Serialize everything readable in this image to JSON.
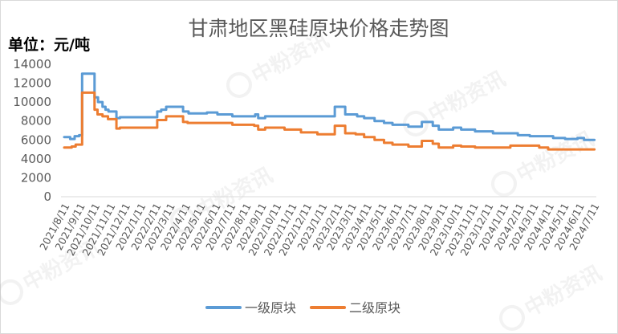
{
  "watermark": "中粉资讯",
  "colors": {
    "background": "#FFFFFF",
    "border": "#D9D9D9",
    "axis": "#D9D9D9",
    "text": "#595959"
  },
  "chart_data": {
    "type": "line",
    "title": "甘肃地区黑硅原块价格走势图",
    "ylabel": "单位：元/吨",
    "ylim": [
      0,
      14000
    ],
    "yticks": [
      0,
      2000,
      4000,
      6000,
      8000,
      10000,
      12000,
      14000
    ],
    "grid": false,
    "legend": "bottom",
    "x_ticks": [
      "2021/8/11",
      "2021/9/11",
      "2021/10/11",
      "2021/11/11",
      "2021/12/11",
      "2022/1/11",
      "2022/2/11",
      "2022/3/11",
      "2022/4/11",
      "2022/5/11",
      "2022/6/11",
      "2022/7/11",
      "2022/8/11",
      "2022/9/11",
      "2022/10/11",
      "2022/11/11",
      "2022/12/11",
      "2023/1/11",
      "2023/2/11",
      "2023/3/11",
      "2023/4/11",
      "2023/5/11",
      "2023/6/11",
      "2023/7/11",
      "2023/8/11",
      "2023/9/11",
      "2023/10/11",
      "2023/11/11",
      "2023/12/11",
      "2024/1/11",
      "2024/2/11",
      "2024/3/11",
      "2024/4/11",
      "2024/5/11",
      "2024/6/11",
      "2024/7/11"
    ],
    "series": [
      {
        "name": "一级原块",
        "color": "#5B9BD5",
        "points": [
          [
            "2021/8/11",
            6300
          ],
          [
            "2021/8/23",
            6100
          ],
          [
            "2021/9/1",
            6400
          ],
          [
            "2021/9/10",
            6500
          ],
          [
            "2021/9/16",
            13000
          ],
          [
            "2021/10/11",
            10500
          ],
          [
            "2021/10/18",
            10000
          ],
          [
            "2021/10/27",
            9500
          ],
          [
            "2021/11/2",
            9200
          ],
          [
            "2021/11/8",
            9000
          ],
          [
            "2021/11/24",
            8300
          ],
          [
            "2021/12/1",
            8400
          ],
          [
            "2022/2/14",
            9000
          ],
          [
            "2022/2/22",
            9200
          ],
          [
            "2022/3/4",
            9500
          ],
          [
            "2022/4/7",
            9000
          ],
          [
            "2022/4/18",
            8800
          ],
          [
            "2022/5/25",
            8900
          ],
          [
            "2022/6/15",
            8700
          ],
          [
            "2022/7/15",
            8500
          ],
          [
            "2022/8/30",
            8700
          ],
          [
            "2022/9/5",
            8300
          ],
          [
            "2022/9/19",
            8500
          ],
          [
            "2023/2/6",
            9500
          ],
          [
            "2023/2/27",
            8700
          ],
          [
            "2023/3/23",
            8500
          ],
          [
            "2023/4/6",
            8300
          ],
          [
            "2023/4/27",
            8000
          ],
          [
            "2023/5/16",
            7800
          ],
          [
            "2023/6/2",
            7600
          ],
          [
            "2023/7/4",
            7400
          ],
          [
            "2023/7/31",
            7900
          ],
          [
            "2023/8/22",
            7500
          ],
          [
            "2023/9/3",
            7100
          ],
          [
            "2023/10/2",
            7300
          ],
          [
            "2023/10/18",
            7100
          ],
          [
            "2023/11/15",
            6900
          ],
          [
            "2023/12/21",
            6700
          ],
          [
            "2024/2/9",
            6500
          ],
          [
            "2024/3/4",
            6400
          ],
          [
            "2024/4/20",
            6200
          ],
          [
            "2024/5/14",
            6100
          ],
          [
            "2024/6/8",
            6200
          ],
          [
            "2024/6/21",
            6000
          ],
          [
            "2024/7/12",
            6000
          ]
        ]
      },
      {
        "name": "二级原块",
        "color": "#ED7D31",
        "points": [
          [
            "2021/8/11",
            5200
          ],
          [
            "2021/8/26",
            5300
          ],
          [
            "2021/9/3",
            5500
          ],
          [
            "2021/9/16",
            11000
          ],
          [
            "2021/10/11",
            9200
          ],
          [
            "2021/10/17",
            8700
          ],
          [
            "2021/10/27",
            8500
          ],
          [
            "2021/11/7",
            8200
          ],
          [
            "2021/11/24",
            7200
          ],
          [
            "2021/12/1",
            7300
          ],
          [
            "2022/2/14",
            8100
          ],
          [
            "2022/3/4",
            8500
          ],
          [
            "2022/4/7",
            7900
          ],
          [
            "2022/4/16",
            7800
          ],
          [
            "2022/7/15",
            7600
          ],
          [
            "2022/8/28",
            7500
          ],
          [
            "2022/9/5",
            7100
          ],
          [
            "2022/9/19",
            7300
          ],
          [
            "2022/10/28",
            7100
          ],
          [
            "2022/11/30",
            6800
          ],
          [
            "2023/1/2",
            6600
          ],
          [
            "2023/2/6",
            7500
          ],
          [
            "2023/2/27",
            6700
          ],
          [
            "2023/3/20",
            6600
          ],
          [
            "2023/4/6",
            6300
          ],
          [
            "2023/4/27",
            6000
          ],
          [
            "2023/5/16",
            5700
          ],
          [
            "2023/6/2",
            5500
          ],
          [
            "2023/7/4",
            5300
          ],
          [
            "2023/7/31",
            5900
          ],
          [
            "2023/8/22",
            5600
          ],
          [
            "2023/9/3",
            5200
          ],
          [
            "2023/10/2",
            5400
          ],
          [
            "2023/10/18",
            5300
          ],
          [
            "2023/11/15",
            5200
          ],
          [
            "2024/1/25",
            5400
          ],
          [
            "2024/3/23",
            5200
          ],
          [
            "2024/4/10",
            5000
          ],
          [
            "2024/7/12",
            5000
          ]
        ]
      }
    ]
  }
}
